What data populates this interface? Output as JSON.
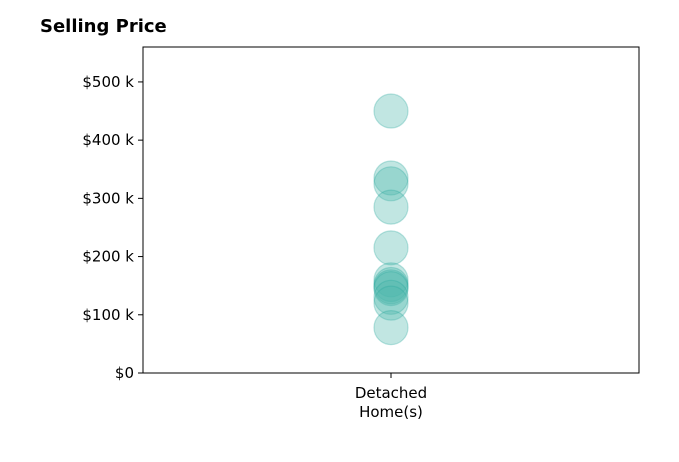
{
  "chart_data": {
    "type": "scatter",
    "title": "Selling Price",
    "categories": [
      "Detached\nHome(s)"
    ],
    "y_ticks": [
      0,
      100000,
      200000,
      300000,
      400000,
      500000
    ],
    "y_tick_labels": [
      "$0",
      "$100 k",
      "$200 k",
      "$300 k",
      "$400 k",
      "$500 k"
    ],
    "ylim": [
      0,
      560000
    ],
    "grid": false,
    "series": [
      {
        "category": "Detached\nHome(s)",
        "values": [
          450000,
          335000,
          325000,
          285000,
          215000,
          160000,
          152000,
          148000,
          145000,
          130000,
          120000,
          78000
        ]
      }
    ],
    "marker_color": "#4db6ac",
    "marker_edge_color": "#26a69a",
    "marker_opacity": 0.35
  }
}
